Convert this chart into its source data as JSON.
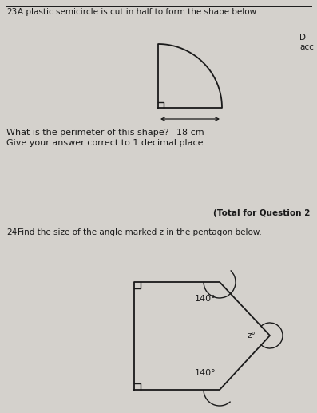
{
  "bg_color": "#d4d1cc",
  "line_color": "#1a1a1a",
  "text_color": "#1a1a1a",
  "q23_number": "23",
  "q23_text": "A plastic semicircle is cut in half to form the shape below.",
  "q23_label": "18 cm",
  "q23_subtext1": "What is the perimeter of this shape?",
  "q23_subtext2": "Give your answer correct to 1 decimal place.",
  "q23_right_text1": "Di",
  "q23_right_text2": "acc",
  "total_text": "(Total for Question 2",
  "q24_number": "24",
  "q24_text": "Find the size of the angle marked z in the pentagon below.",
  "angle1_label": "140°",
  "angle2_label": "140°",
  "angle_z_label": "z°",
  "fig_width": 3.97,
  "fig_height": 5.17,
  "dpi": 100
}
